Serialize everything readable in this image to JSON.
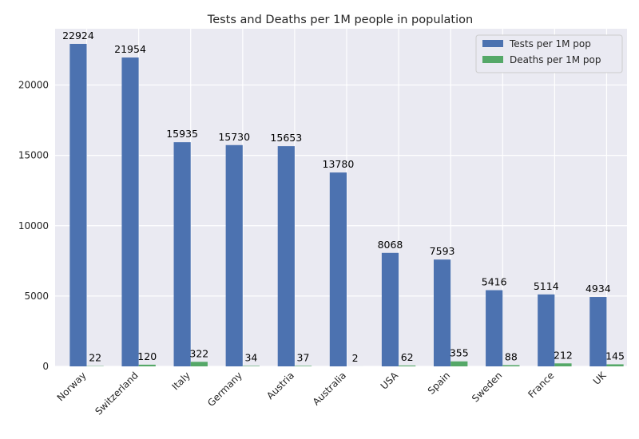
{
  "chart_data": {
    "type": "bar",
    "title": "Tests and Deaths per 1M people in population",
    "xlabel": "",
    "ylabel": "",
    "categories": [
      "Norway",
      "Switzerland",
      "Italy",
      "Germany",
      "Austria",
      "Australia",
      "USA",
      "Spain",
      "Sweden",
      "France",
      "UK"
    ],
    "series": [
      {
        "name": "Tests per 1M pop",
        "values": [
          22924,
          21954,
          15935,
          15730,
          15653,
          13780,
          8068,
          7593,
          5416,
          5114,
          4934
        ],
        "color": "#4c72b0"
      },
      {
        "name": "Deaths per 1M pop",
        "values": [
          22,
          120,
          322,
          34,
          37,
          2,
          62,
          355,
          88,
          212,
          145
        ],
        "color": "#55a868"
      }
    ],
    "ylim": [
      0,
      24000
    ],
    "yticks": [
      0,
      5000,
      10000,
      15000,
      20000
    ],
    "grid": true,
    "legend_position": "top-right",
    "background": "#eaeaf2"
  }
}
